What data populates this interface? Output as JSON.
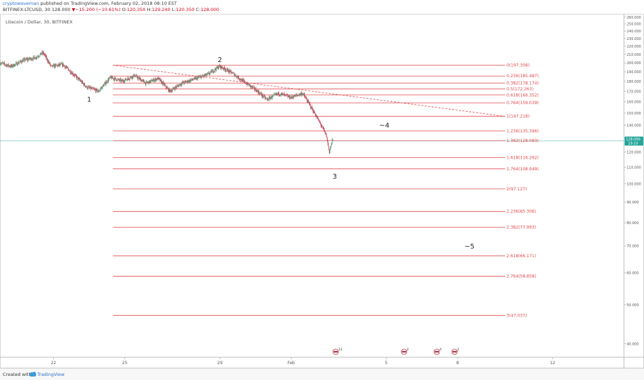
{
  "header": {
    "user": "cryptowaveman",
    "published": "published on TradingView.com, February 02, 2018 08:10 EST",
    "symbol": "BITFINEX:LTCUSD, 30",
    "last": "128.000",
    "change_arrow": "▼",
    "change": "−15.200 (−10.61%)",
    "o_label": "O:",
    "o_value": "120.350",
    "h_label": "H:",
    "h_value": "129.240",
    "l_label": "L:",
    "l_value": "120.350",
    "c_label": "C:",
    "c_value": "128.000"
  },
  "footer": {
    "created_with": "Created with",
    "brand": "TradingView"
  },
  "chart_data": {
    "type": "line",
    "title": "Litecoin / Dollar, 30, BITFINEX",
    "y_scale": "log",
    "ylim": [
      37,
      265
    ],
    "y_ticks": [
      40,
      50,
      60,
      70,
      80,
      90,
      100,
      110,
      120,
      130,
      140,
      150,
      160,
      170,
      180,
      190,
      200,
      210,
      220,
      230,
      240,
      250,
      260
    ],
    "y_tick_labels": [
      "40.000",
      "50.000",
      "60.000",
      "70.000",
      "80.000",
      "90.000",
      "100.000",
      "110.000",
      "120.000",
      "130.000",
      "140.000",
      "150.000",
      "160.000",
      "170.000",
      "180.000",
      "190.000",
      "200.000",
      "210.000",
      "220.000",
      "230.000",
      "240.000",
      "250.000",
      "260.000"
    ],
    "x_range_days": [
      "2018-01-19T18:00",
      "2018-02-15T00:00"
    ],
    "x_ticks": [
      {
        "date": "2018-01-22T00:00",
        "label": "22"
      },
      {
        "date": "2018-01-25T00:00",
        "label": "25"
      },
      {
        "date": "2018-01-29T00:00",
        "label": "29"
      },
      {
        "date": "2018-02-01T00:00",
        "label": "Feb"
      },
      {
        "date": "2018-02-05T00:00",
        "label": "5"
      },
      {
        "date": "2018-02-08T00:00",
        "label": "8"
      },
      {
        "date": "2018-02-12T00:00",
        "label": "12"
      }
    ],
    "last_price": {
      "value": 128.0,
      "label": "128.000",
      "countdown": "19:10",
      "color": "#26a69a"
    },
    "price_path": [
      {
        "t": "2018-01-19T18:00",
        "v": 200
      },
      {
        "t": "2018-01-20T06:00",
        "v": 196
      },
      {
        "t": "2018-01-20T18:00",
        "v": 203
      },
      {
        "t": "2018-01-21T06:00",
        "v": 206
      },
      {
        "t": "2018-01-21T14:00",
        "v": 212
      },
      {
        "t": "2018-01-21T22:00",
        "v": 196
      },
      {
        "t": "2018-01-22T10:00",
        "v": 198
      },
      {
        "t": "2018-01-22T22:00",
        "v": 186
      },
      {
        "t": "2018-01-23T10:00",
        "v": 174
      },
      {
        "t": "2018-01-23T22:00",
        "v": 170
      },
      {
        "t": "2018-01-24T10:00",
        "v": 184
      },
      {
        "t": "2018-01-24T22:00",
        "v": 180
      },
      {
        "t": "2018-01-25T10:00",
        "v": 186
      },
      {
        "t": "2018-01-25T22:00",
        "v": 178
      },
      {
        "t": "2018-01-26T10:00",
        "v": 183
      },
      {
        "t": "2018-01-26T22:00",
        "v": 170
      },
      {
        "t": "2018-01-27T10:00",
        "v": 178
      },
      {
        "t": "2018-01-27T22:00",
        "v": 182
      },
      {
        "t": "2018-01-28T12:00",
        "v": 187
      },
      {
        "t": "2018-01-29T00:00",
        "v": 196
      },
      {
        "t": "2018-01-29T06:00",
        "v": 193
      },
      {
        "t": "2018-01-29T14:00",
        "v": 188
      },
      {
        "t": "2018-01-30T00:00",
        "v": 180
      },
      {
        "t": "2018-01-30T12:00",
        "v": 172
      },
      {
        "t": "2018-01-31T00:00",
        "v": 162
      },
      {
        "t": "2018-01-31T12:00",
        "v": 168
      },
      {
        "t": "2018-02-01T00:00",
        "v": 164
      },
      {
        "t": "2018-02-01T12:00",
        "v": 168
      },
      {
        "t": "2018-02-02T00:00",
        "v": 150
      },
      {
        "t": "2018-02-02T06:00",
        "v": 141
      },
      {
        "t": "2018-02-02T12:00",
        "v": 132
      },
      {
        "t": "2018-02-02T15:00",
        "v": 120
      },
      {
        "t": "2018-02-02T18:00",
        "v": 128
      }
    ],
    "fib_levels": [
      {
        "value": 197.308,
        "label": "0(197.308)"
      },
      {
        "value": 185.487,
        "label": "0.236(185.487)"
      },
      {
        "value": 178.174,
        "label": "0.382(178.174)"
      },
      {
        "value": 172.263,
        "label": "0.5(172.263)"
      },
      {
        "value": 166.352,
        "label": "0.618(166.352)"
      },
      {
        "value": 159.039,
        "label": "0.764(159.039)"
      },
      {
        "value": 147.218,
        "label": "1(147.218)"
      },
      {
        "value": 135.396,
        "label": "1.236(135.396)"
      },
      {
        "value": 128.083,
        "label": "1.382(128.083)"
      },
      {
        "value": 116.262,
        "label": "1.618(116.262)"
      },
      {
        "value": 108.949,
        "label": "1.764(108.949)"
      },
      {
        "value": 97.127,
        "label": "2(97.127)"
      },
      {
        "value": 85.306,
        "label": "2.236(85.306)"
      },
      {
        "value": 77.993,
        "label": "2.382(77.993)"
      },
      {
        "value": 66.171,
        "label": "2.618(66.171)"
      },
      {
        "value": 58.858,
        "label": "2.764(58.858)"
      },
      {
        "value": 47.037,
        "label": "3(47.037)"
      }
    ],
    "fib_start": "2018-01-24T12:00",
    "fib_end": "2018-02-10T00:00",
    "fib_color": "#e0474c",
    "trendline": {
      "t1": "2018-01-24T12:00",
      "v1": 197.3,
      "t2": "2018-02-10T00:00",
      "v2": 147.2,
      "style": "dashed"
    },
    "wave_labels": [
      {
        "text": "1",
        "t": "2018-01-23T12:00",
        "v": 160
      },
      {
        "text": "2",
        "t": "2018-01-29T00:00",
        "v": 201
      },
      {
        "text": "3",
        "t": "2018-02-02T20:00",
        "v": 103
      },
      {
        "text": "~4",
        "t": "2018-02-04T22:00",
        "v": 138
      },
      {
        "text": "~5",
        "t": "2018-02-08T12:00",
        "v": 69
      }
    ],
    "event_markers": [
      {
        "t": "2018-02-02T21:00",
        "label": "12"
      },
      {
        "t": "2018-02-05T18:00",
        "label": "2"
      },
      {
        "t": "2018-02-07T03:00",
        "label": "4"
      },
      {
        "t": "2018-02-07T21:00",
        "label": "2"
      }
    ]
  }
}
